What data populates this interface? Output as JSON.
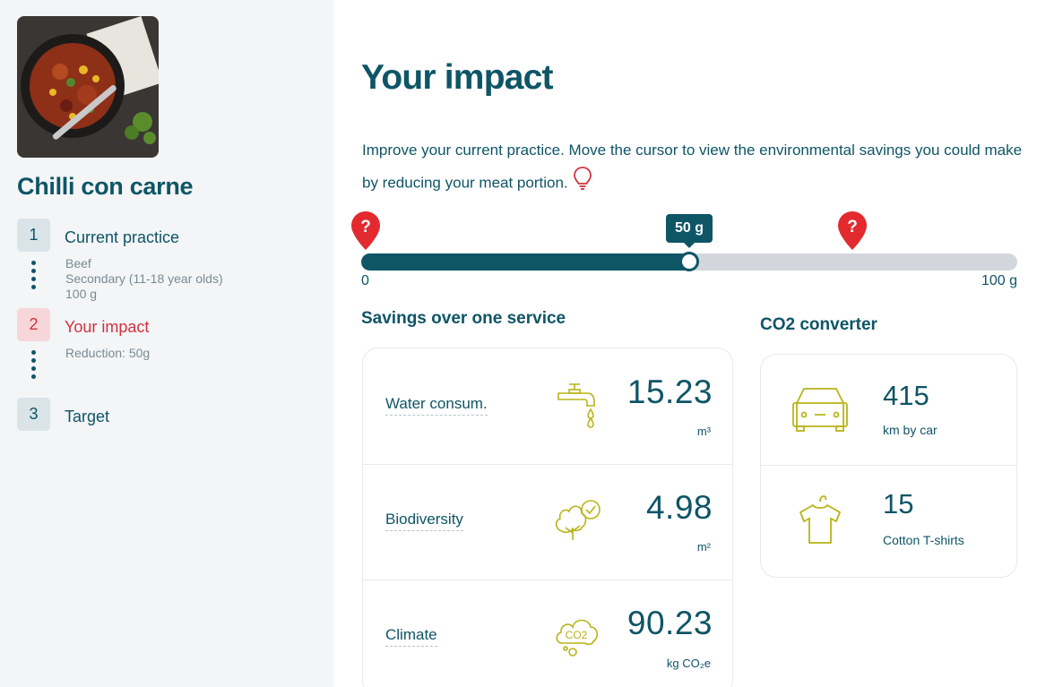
{
  "sidebar": {
    "recipe_title": "Chilli con carne",
    "steps": [
      {
        "number": "1",
        "label": "Current practice",
        "details": [
          "Beef",
          "Secondary (11-18 year olds)",
          "100 g"
        ]
      },
      {
        "number": "2",
        "label": "Your impact",
        "details": [
          "Reduction: 50g"
        ]
      },
      {
        "number": "3",
        "label": "Target",
        "details": []
      }
    ]
  },
  "main": {
    "title": "Your impact",
    "intro": "Improve your current practice. Move the cursor to view the environmental savings you could make by reducing your meat portion.",
    "slider": {
      "value_label": "50 g",
      "value_fraction": 0.5,
      "min_label": "0",
      "max_label": "100 g"
    },
    "savings": {
      "title": "Savings over one service",
      "rows": [
        {
          "label": "Water consum.",
          "value": "15.23",
          "unit": "m³",
          "icon": "water-tap-icon"
        },
        {
          "label": "Biodiversity",
          "value": "4.98",
          "unit": "m²",
          "icon": "tree-check-icon"
        },
        {
          "label": "Climate",
          "value": "90.23",
          "unit": "kg CO₂e",
          "icon": "co2-cloud-icon"
        }
      ]
    },
    "converter": {
      "title": "CO2 converter",
      "rows": [
        {
          "value": "415",
          "label": "km by car",
          "icon": "car-icon"
        },
        {
          "value": "15",
          "label": "Cotton T-shirts",
          "icon": "tshirt-icon"
        }
      ]
    }
  },
  "colors": {
    "primary": "#0e5566",
    "accent_red": "#d0323f",
    "icon_olive": "#b8b418",
    "sidebar_bg": "#f3f5f7",
    "track": "#d3d6dc"
  }
}
